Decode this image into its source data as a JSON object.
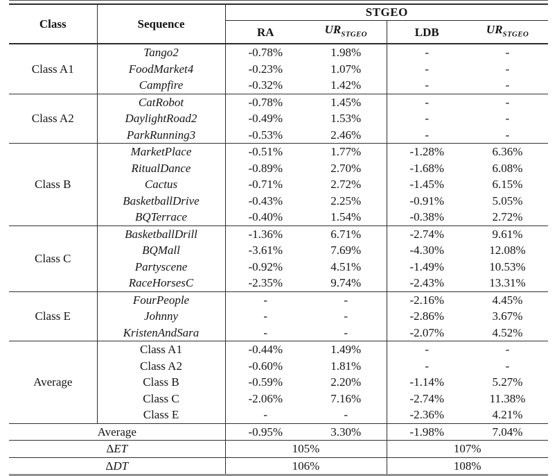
{
  "header": {
    "class": "Class",
    "sequence": "Sequence",
    "group": "STGEO",
    "ra": "RA",
    "ldb": "LDB",
    "ur_main": "UR",
    "ur_sub": "STGEO"
  },
  "groups": [
    {
      "class": "Class A1",
      "italic_names": true,
      "rows": [
        {
          "name": "Tango2",
          "cells": [
            "-0.78%",
            "1.98%",
            "-",
            "-"
          ]
        },
        {
          "name": "FoodMarket4",
          "cells": [
            "-0.23%",
            "1.07%",
            "-",
            "-"
          ]
        },
        {
          "name": "Campfire",
          "cells": [
            "-0.32%",
            "1.42%",
            "-",
            "-"
          ]
        }
      ]
    },
    {
      "class": "Class A2",
      "italic_names": true,
      "rows": [
        {
          "name": "CatRobot",
          "cells": [
            "-0.78%",
            "1.45%",
            "-",
            "-"
          ]
        },
        {
          "name": "DaylightRoad2",
          "cells": [
            "-0.49%",
            "1.53%",
            "-",
            "-"
          ]
        },
        {
          "name": "ParkRunning3",
          "cells": [
            "-0.53%",
            "2.46%",
            "-",
            "-"
          ]
        }
      ]
    },
    {
      "class": "Class B",
      "italic_names": true,
      "rows": [
        {
          "name": "MarketPlace",
          "cells": [
            "-0.51%",
            "1.77%",
            "-1.28%",
            "6.36%"
          ]
        },
        {
          "name": "RitualDance",
          "cells": [
            "-0.89%",
            "2.70%",
            "-1.68%",
            "6.08%"
          ]
        },
        {
          "name": "Cactus",
          "cells": [
            "-0.71%",
            "2.72%",
            "-1.45%",
            "6.15%"
          ]
        },
        {
          "name": "BasketballDrive",
          "cells": [
            "-0.43%",
            "2.25%",
            "-0.91%",
            "5.05%"
          ]
        },
        {
          "name": "BQTerrace",
          "cells": [
            "-0.40%",
            "1.54%",
            "-0.38%",
            "2.72%"
          ]
        }
      ]
    },
    {
      "class": "Class C",
      "italic_names": true,
      "rows": [
        {
          "name": "BasketballDrill",
          "cells": [
            "-1.36%",
            "6.71%",
            "-2.74%",
            "9.61%"
          ]
        },
        {
          "name": "BQMall",
          "cells": [
            "-3.61%",
            "7.69%",
            "-4.30%",
            "12.08%"
          ]
        },
        {
          "name": "Partyscene",
          "cells": [
            "-0.92%",
            "4.51%",
            "-1.49%",
            "10.53%"
          ]
        },
        {
          "name": "RaceHorsesC",
          "cells": [
            "-2.35%",
            "9.74%",
            "-2.43%",
            "13.31%"
          ]
        }
      ]
    },
    {
      "class": "Class E",
      "italic_names": true,
      "rows": [
        {
          "name": "FourPeople",
          "cells": [
            "-",
            "-",
            "-2.16%",
            "4.45%"
          ]
        },
        {
          "name": "Johnny",
          "cells": [
            "-",
            "-",
            "-2.86%",
            "3.67%"
          ]
        },
        {
          "name": "KristenAndSara",
          "cells": [
            "-",
            "-",
            "-2.07%",
            "4.52%"
          ]
        }
      ]
    },
    {
      "class": "Average",
      "italic_names": false,
      "rows": [
        {
          "name": "Class A1",
          "cells": [
            "-0.44%",
            "1.49%",
            "-",
            "-"
          ]
        },
        {
          "name": "Class A2",
          "cells": [
            "-0.60%",
            "1.81%",
            "-",
            "-"
          ]
        },
        {
          "name": "Class B",
          "cells": [
            "-0.59%",
            "2.20%",
            "-1.14%",
            "5.27%"
          ]
        },
        {
          "name": "Class C",
          "cells": [
            "-2.06%",
            "7.16%",
            "-2.74%",
            "11.38%"
          ]
        },
        {
          "name": "Class E",
          "cells": [
            "-",
            "-",
            "-2.36%",
            "4.21%"
          ]
        }
      ]
    }
  ],
  "summary": [
    {
      "label_prefix": "",
      "label_italic": "",
      "label_plain": "Average",
      "pair_span": false,
      "cells": [
        "-0.95%",
        "3.30%",
        "-1.98%",
        "7.04%"
      ]
    },
    {
      "label_prefix": "Δ",
      "label_italic": "ET",
      "label_plain": "",
      "pair_span": true,
      "cells": [
        "105%",
        "107%"
      ]
    },
    {
      "label_prefix": "Δ",
      "label_italic": "DT",
      "label_plain": "",
      "pair_span": true,
      "cells": [
        "106%",
        "108%"
      ]
    }
  ],
  "colors": {
    "rule": "#2b2b2b",
    "bottom_rule": "#909090",
    "text": "#141414"
  }
}
